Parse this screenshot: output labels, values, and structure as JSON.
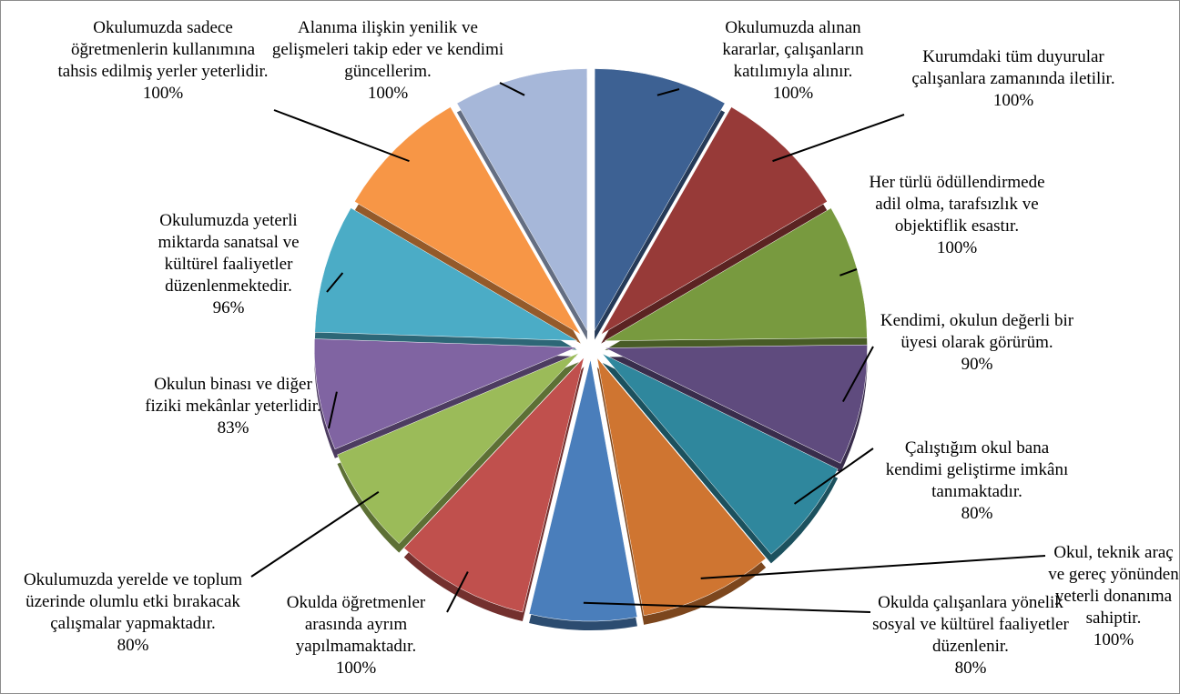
{
  "chart_data": {
    "type": "pie",
    "categories": [
      "Okulumuzda alınan kararlar, çalışanların katılımıyla alınır.",
      "Kurumdaki tüm duyurular çalışanlara zamanında iletilir.",
      "Her türlü ödüllendirmede adil olma, tarafsızlık ve objektiflik esastır.",
      "Kendimi, okulun değerli bir üyesi olarak görürüm.",
      "Çalıştığım okul bana kendimi geliştirme imkânı tanımaktadır.",
      "Okul, teknik araç ve gereç yönünden yeterli donanıma sahiptir.",
      "Okulda çalışanlara yönelik sosyal ve kültürel faaliyetler düzenlenir.",
      "Okulda öğretmenler arasında ayrım yapılmamaktadır.",
      "Okulumuzda yerelde ve toplum üzerinde olumlu etki bırakacak çalışmalar yapmaktadır.",
      "Okulun binası ve diğer fiziki mekânlar yeterlidir.",
      "Okulumuzda yeterli miktarda sanatsal ve kültürel faaliyetler düzenlenmektedir.",
      "Okulumuzda sadece öğretmenlerin kullanımına tahsis edilmiş yerler yeterlidir.",
      "Alanıma ilişkin yenilik ve gelişmeleri takip eder ve kendimi güncellerim."
    ],
    "values": [
      100,
      100,
      100,
      90,
      80,
      100,
      80,
      100,
      80,
      83,
      96,
      100,
      100
    ],
    "value_labels": [
      "100%",
      "100%",
      "100%",
      "90%",
      "80%",
      "100%",
      "80%",
      "100%",
      "80%",
      "83%",
      "96%",
      "100%",
      "100%"
    ],
    "colors": [
      "#3d6193",
      "#973a38",
      "#789a3f",
      "#5f4b7e",
      "#2f879d",
      "#cf7531",
      "#4a7ebb",
      "#c0504d",
      "#9bbb59",
      "#8064a2",
      "#4bacc6",
      "#f79646",
      "#a6b7d9"
    ]
  }
}
